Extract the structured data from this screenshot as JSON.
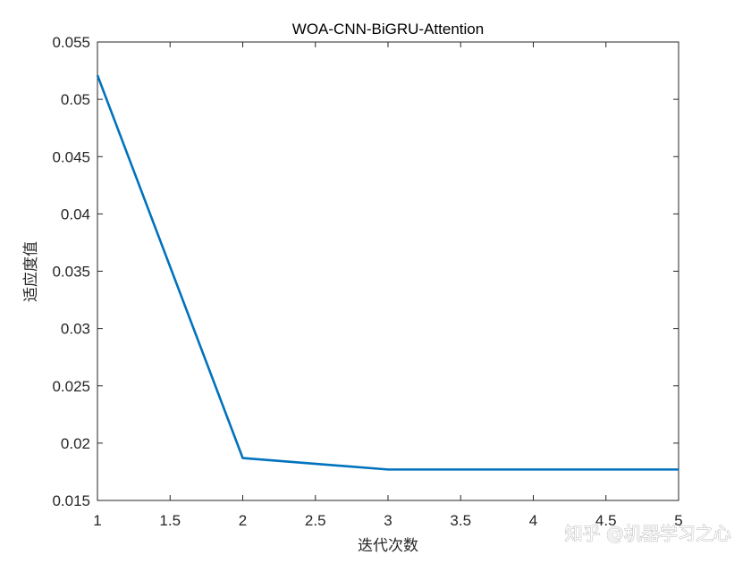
{
  "chart_data": {
    "type": "line",
    "title": "WOA-CNN-BiGRU-Attention",
    "xlabel": "迭代次数",
    "ylabel": "适应度值",
    "xlim": [
      1,
      5
    ],
    "ylim": [
      0.015,
      0.055
    ],
    "x_ticks": [
      "1",
      "1.5",
      "2",
      "2.5",
      "3",
      "3.5",
      "4",
      "4.5",
      "5"
    ],
    "y_ticks": [
      "0.015",
      "0.02",
      "0.025",
      "0.03",
      "0.035",
      "0.04",
      "0.045",
      "0.05",
      "0.055"
    ],
    "grid": false,
    "series": [
      {
        "x": [
          1,
          2,
          3,
          4,
          5
        ],
        "values": [
          0.0521,
          0.0187,
          0.0177,
          0.0177,
          0.0177
        ],
        "color": "#0072BD"
      }
    ]
  },
  "watermark": "知乎 @机器学习之心"
}
